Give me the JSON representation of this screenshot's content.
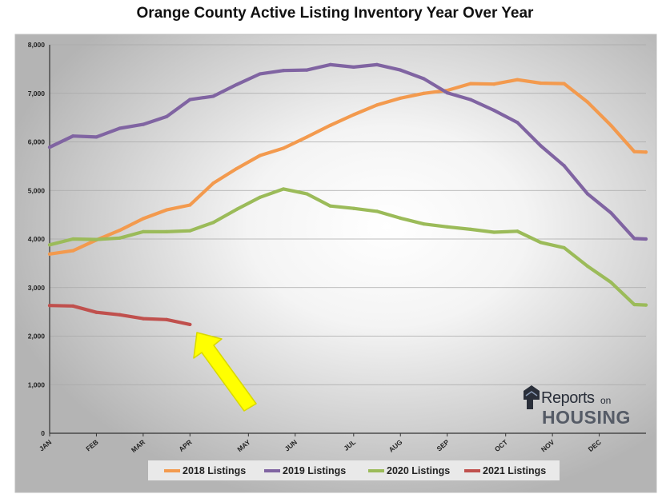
{
  "title": "Orange County Active Listing Inventory Year Over Year",
  "colors": {
    "2018": "#f39a4e",
    "2019": "#8064a2",
    "2020": "#9bbb59",
    "2021": "#c0504d",
    "arrow": "#ffff00"
  },
  "logo": {
    "word1": "Reports",
    "word2": "on",
    "word3": "HOUSING"
  },
  "chart_data": {
    "type": "line",
    "title": "Orange County Active Listing Inventory Year Over Year",
    "xlabel": "",
    "ylabel": "",
    "ylim": [
      0,
      8000
    ],
    "yticks": [
      0,
      1000,
      2000,
      3000,
      4000,
      5000,
      6000,
      7000,
      8000
    ],
    "ytick_labels": [
      "0",
      "1,000",
      "2,000",
      "3,000",
      "4,000",
      "5,000",
      "6,000",
      "7,000",
      "8,000"
    ],
    "xlim": [
      0,
      51
    ],
    "xticks": [
      0,
      4,
      8,
      12,
      17,
      21,
      26,
      30,
      34,
      39,
      43,
      47
    ],
    "xtick_labels": [
      "JAN",
      "FEB",
      "MAR",
      "APR",
      "MAY",
      "JUN",
      "JUL",
      "AUG",
      "SEP",
      "OCT",
      "NOV",
      "DEC"
    ],
    "grid": "horizontal",
    "legend_position": "bottom",
    "annotations": [
      "yellow arrow pointing to the end of the 2021 Listings line"
    ],
    "series": [
      {
        "name": "2018 Listings",
        "x": [
          0,
          2,
          4,
          6,
          8,
          10,
          12,
          14,
          16,
          18,
          20,
          22,
          24,
          26,
          28,
          30,
          32,
          34,
          36,
          38,
          40,
          42,
          44,
          46,
          48,
          50,
          51
        ],
        "values": [
          3690,
          3760,
          3980,
          4180,
          4420,
          4600,
          4700,
          5150,
          5450,
          5720,
          5870,
          6100,
          6340,
          6560,
          6760,
          6900,
          7000,
          7060,
          7200,
          7190,
          7280,
          7210,
          7200,
          6820,
          6340,
          5800,
          5790
        ]
      },
      {
        "name": "2019 Listings",
        "x": [
          0,
          2,
          4,
          6,
          8,
          10,
          12,
          14,
          16,
          18,
          20,
          22,
          24,
          26,
          28,
          30,
          32,
          34,
          36,
          38,
          40,
          42,
          44,
          46,
          48,
          50,
          51
        ],
        "values": [
          5890,
          6120,
          6100,
          6280,
          6360,
          6520,
          6870,
          6940,
          7180,
          7400,
          7470,
          7480,
          7590,
          7540,
          7590,
          7480,
          7300,
          7010,
          6870,
          6650,
          6400,
          5920,
          5510,
          4930,
          4540,
          4010,
          4000
        ]
      },
      {
        "name": "2020 Listings",
        "x": [
          0,
          2,
          4,
          6,
          8,
          10,
          12,
          14,
          16,
          18,
          20,
          22,
          24,
          26,
          28,
          30,
          32,
          34,
          36,
          38,
          40,
          42,
          44,
          46,
          48,
          50,
          51
        ],
        "values": [
          3880,
          4000,
          3990,
          4020,
          4150,
          4150,
          4170,
          4340,
          4610,
          4860,
          5030,
          4930,
          4680,
          4630,
          4570,
          4430,
          4310,
          4250,
          4200,
          4140,
          4160,
          3930,
          3820,
          3440,
          3110,
          2650,
          2640
        ]
      },
      {
        "name": "2021 Listings",
        "x": [
          0,
          2,
          4,
          6,
          8,
          10,
          12
        ],
        "values": [
          2630,
          2620,
          2490,
          2440,
          2360,
          2340,
          2240
        ]
      }
    ]
  }
}
